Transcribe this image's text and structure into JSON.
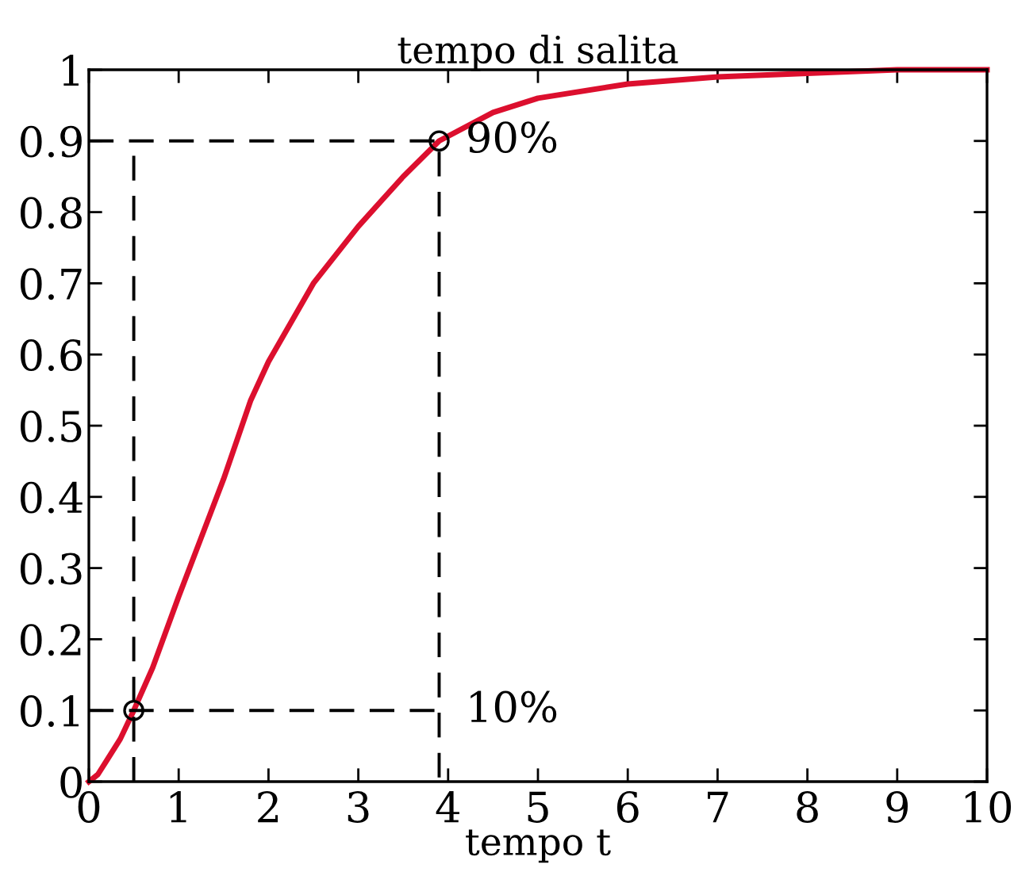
{
  "chart_data": {
    "type": "line",
    "title": "tempo di salita",
    "xlabel": "tempo t",
    "xlim": [
      0,
      10
    ],
    "xticks": [
      0,
      1,
      2,
      3,
      4,
      5,
      6,
      7,
      8,
      9,
      10
    ],
    "ylim": [
      0,
      1
    ],
    "yticks": [
      0,
      0.1,
      0.2,
      0.3,
      0.4,
      0.5,
      0.6,
      0.7,
      0.8,
      0.9,
      1
    ],
    "grid": false,
    "legend": false,
    "series": [
      {
        "color": "#dc0f2e",
        "line_style": "solid",
        "marker": "none",
        "x": [
          0,
          0.1,
          0.2,
          0.35,
          0.5,
          0.71,
          1.0,
          1.5,
          1.8,
          2.0,
          2.5,
          3.0,
          3.5,
          3.9,
          4.5,
          5.0,
          6.0,
          7.0,
          8.0,
          9.0,
          10.0
        ],
        "values": [
          0,
          0.01,
          0.03,
          0.06,
          0.1,
          0.16,
          0.26,
          0.425,
          0.535,
          0.59,
          0.7,
          0.78,
          0.85,
          0.9,
          0.94,
          0.96,
          0.98,
          0.99,
          0.995,
          1.0,
          1.0
        ]
      },
      {
        "color": "#000000",
        "line_style": "dashed",
        "marker": "none",
        "x": [
          0,
          3.9,
          3.9
        ],
        "values": [
          0.9,
          0.9,
          0
        ]
      },
      {
        "color": "#000000",
        "line_style": "dashed",
        "marker": "none",
        "x": [
          0.5,
          0.5
        ],
        "values": [
          0,
          0.9
        ]
      },
      {
        "color": "#000000",
        "line_style": "dashed",
        "marker": "none",
        "x": [
          0,
          3.9
        ],
        "values": [
          0.1,
          0.1
        ]
      },
      {
        "type": "scatter",
        "color": "#000000",
        "marker": "circle",
        "x": [
          0.5,
          3.9
        ],
        "values": [
          0.1,
          0.9
        ]
      }
    ],
    "annotations": [
      {
        "text": "90%",
        "x": 3.9,
        "y": 0.9
      },
      {
        "text": "10%",
        "x": 3.9,
        "y": 0.1
      }
    ]
  }
}
